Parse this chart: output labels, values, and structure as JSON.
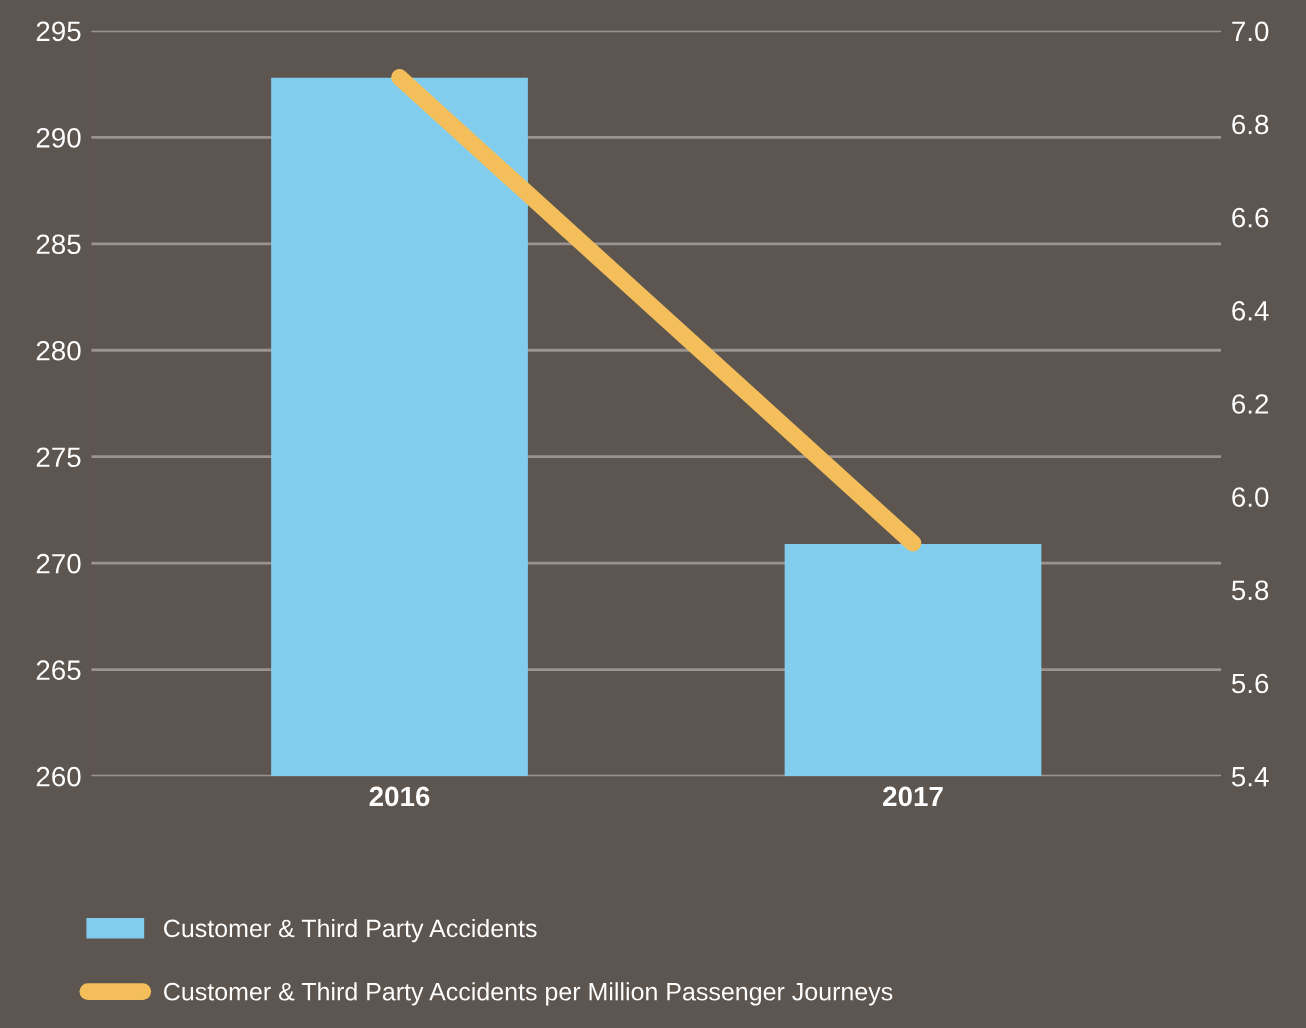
{
  "chart_data": {
    "type": "bar",
    "categories": [
      "2016",
      "2017"
    ],
    "series": [
      {
        "name": "Customer & Third Party Accidents",
        "color": "#82cdee",
        "values": [
          292.8,
          270.9
        ]
      },
      {
        "name": "Customer & Third Party Accidents per Million Passenger Journeys",
        "type": "line",
        "axis": "y2",
        "color": "#f4bf5a",
        "values": [
          6.9,
          5.9
        ]
      }
    ],
    "ylim": [
      260,
      295
    ],
    "yticks": [
      260,
      265,
      270,
      275,
      280,
      285,
      290,
      295
    ],
    "y2lim": [
      5.4,
      7.0
    ],
    "y2ticks": [
      {
        "value": 5.4,
        "label": "5.4"
      },
      {
        "value": 5.6,
        "label": "5.6"
      },
      {
        "value": 5.8,
        "label": "5.8"
      },
      {
        "value": 6.0,
        "label": "6.0"
      },
      {
        "value": 6.2,
        "label": "6.2"
      },
      {
        "value": 6.4,
        "label": "6.4"
      },
      {
        "value": 6.6,
        "label": "6.6"
      },
      {
        "value": 6.8,
        "label": "6.8"
      },
      {
        "value": 7.0,
        "label": "7.0"
      }
    ],
    "grid": "y",
    "legend": "bottom"
  }
}
